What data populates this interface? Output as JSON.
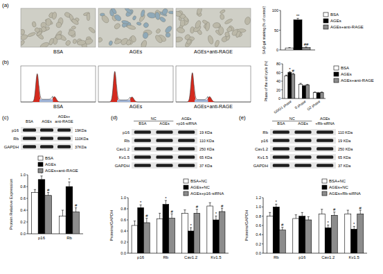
{
  "figure": {
    "panel_labels": [
      "(a)",
      "(b)",
      "(c)",
      "(d)",
      "(e)"
    ],
    "micrographs": {
      "labels": [
        "BSA",
        "AGEs",
        "AGEs+anti-RAGE"
      ]
    },
    "flow_histograms": {
      "labels": [
        "BSA",
        "AGEs",
        "AGEs+anti-RAGE"
      ]
    },
    "blots": [
      {
        "lanes": [
          [
            "BSA"
          ],
          [
            "AGEs"
          ],
          [
            "AGEs+",
            "anti-RAGE"
          ]
        ],
        "rows": [
          {
            "name": "p16",
            "size": "19KDa"
          },
          {
            "name": "Rb",
            "size": "110KDa"
          },
          {
            "name": "GAPDH",
            "size": "37KDa"
          }
        ]
      },
      {
        "group_label": "NC",
        "lanes": [
          [
            "BSA"
          ],
          [
            "AGEs"
          ],
          [
            "AGEs",
            "+p16-siRNA"
          ]
        ],
        "rows": [
          {
            "name": "p16",
            "size": "19 KDa"
          },
          {
            "name": "Rb",
            "size": "110 KDa"
          },
          {
            "name": "Cav1.2",
            "size": "250 KDa"
          },
          {
            "name": "Kv1.5",
            "size": "65 KDa"
          },
          {
            "name": "GAPDH",
            "size": "37 KDa"
          }
        ]
      },
      {
        "group_label": "NC",
        "lanes": [
          [
            "BSA"
          ],
          [
            "AGEs"
          ],
          [
            "AGEs",
            "+Rb-siRNA"
          ]
        ],
        "rows": [
          {
            "name": "Rb",
            "size": "110 KDa"
          },
          {
            "name": "p16",
            "size": "19 KDa"
          },
          {
            "name": "Cav1.2",
            "size": "250 KDa"
          },
          {
            "name": "Kv1.5",
            "size": "65 KDa"
          },
          {
            "name": "GAPDH",
            "size": "37 KDa"
          }
        ]
      }
    ]
  },
  "chart_data": [
    {
      "type": "bar",
      "y_label": "SA-β-gal staining (% of control)",
      "categories": [
        null
      ],
      "series": [
        {
          "name": "BSA",
          "color": "#ffffff",
          "values": [
            5
          ],
          "errors": [
            1
          ]
        },
        {
          "name": "AGEs",
          "color": "#000000",
          "values": [
            76
          ],
          "errors": [
            4
          ],
          "annotations": [
            "**"
          ]
        },
        {
          "name": "AGEs+anti-RAGE",
          "color": "#8c8c8c",
          "values": [
            6
          ],
          "errors": [
            1.5
          ],
          "annotations": [
            "##"
          ]
        }
      ],
      "ylim": [
        0,
        100
      ],
      "yticks": [
        0,
        50,
        100
      ],
      "legend": "right"
    },
    {
      "type": "bar",
      "y_label": "Phase of the cell cycle (%)",
      "categories": [
        "G0/G1 phase",
        "S phase",
        "G2 phase"
      ],
      "series": [
        {
          "name": "BSA",
          "color": "#ffffff",
          "values": [
            52,
            33,
            14
          ],
          "errors": [
            2,
            2,
            1
          ]
        },
        {
          "name": "AGEs",
          "color": "#000000",
          "values": [
            60,
            29,
            13
          ],
          "errors": [
            2,
            1.5,
            1
          ],
          "annotations": [
            "*",
            null,
            null
          ]
        },
        {
          "name": "AGEs+anti-RAGE",
          "color": "#8c8c8c",
          "values": [
            56,
            31,
            14
          ],
          "errors": [
            2,
            1.5,
            1
          ],
          "annotations": [
            "#",
            null,
            null
          ]
        }
      ],
      "ylim": [
        0,
        80
      ],
      "yticks": [
        0,
        20,
        40,
        60,
        80
      ],
      "legend": "right"
    },
    {
      "type": "bar",
      "y_label": "Protein Relative Expression",
      "categories": [
        "p16",
        "Rb"
      ],
      "series": [
        {
          "name": "BSA",
          "color": "#ffffff",
          "values": [
            0.7,
            0.3
          ],
          "errors": [
            0.05,
            0.1
          ]
        },
        {
          "name": "AGEs",
          "color": "#000000",
          "values": [
            0.92,
            0.8
          ],
          "errors": [
            0.06,
            0.08
          ],
          "annotations": [
            "*",
            "*"
          ]
        },
        {
          "name": "AGEs+anti-RAGE",
          "color": "#8c8c8c",
          "values": [
            0.65,
            0.37
          ],
          "errors": [
            0.05,
            0.07
          ],
          "annotations": [
            "#",
            "#"
          ]
        }
      ],
      "ylim": [
        0,
        1.0
      ],
      "yticks": [
        {
          "value": 0,
          "label": "0.0"
        },
        {
          "value": 0.2,
          "label": "0.2"
        },
        {
          "value": 0.4,
          "label": "0.4"
        },
        {
          "value": 0.6,
          "label": "0.6"
        },
        {
          "value": 0.8,
          "label": "0.8"
        },
        {
          "value": 1.0,
          "label": "1.0"
        }
      ],
      "legend": "top"
    },
    {
      "type": "bar",
      "y_label": "Proteins/GAPDH",
      "categories": [
        "p16",
        "Rb",
        "Cav1.2",
        "Kv1.5"
      ],
      "series": [
        {
          "name": "BSA+NC",
          "color": "#ffffff",
          "values": [
            0.5,
            0.62,
            0.72,
            0.85
          ],
          "errors": [
            0.08,
            0.1,
            0.06,
            0.06
          ]
        },
        {
          "name": "AGEs+NC",
          "color": "#000000",
          "values": [
            0.82,
            0.88,
            0.4,
            0.6
          ],
          "errors": [
            0.05,
            0.07,
            0.06,
            0.07
          ],
          "annotations": [
            "*",
            "*",
            "*",
            "*"
          ]
        },
        {
          "name": "AGEs+p16-siRNA",
          "color": "#8c8c8c",
          "values": [
            0.55,
            0.63,
            0.72,
            0.75
          ],
          "errors": [
            0.08,
            0.08,
            0.07,
            0.06
          ],
          "annotations": [
            "#",
            "#",
            "#",
            "#"
          ]
        }
      ],
      "ylim": [
        0,
        1.0
      ],
      "yticks": [
        {
          "value": 0,
          "label": "0.0"
        },
        {
          "value": 0.2,
          "label": "0.2"
        },
        {
          "value": 0.4,
          "label": "0.4"
        },
        {
          "value": 0.6,
          "label": "0.6"
        },
        {
          "value": 0.8,
          "label": "0.8"
        },
        {
          "value": 1.0,
          "label": "1.0"
        }
      ],
      "legend": "top"
    },
    {
      "type": "bar",
      "y_label": "Proteins/GAPDH",
      "categories": [
        "Rb",
        "p16",
        "Cav1.2",
        "Kv1.5"
      ],
      "series": [
        {
          "name": "BSA+NC",
          "color": "#ffffff",
          "values": [
            0.8,
            0.75,
            0.85,
            0.85
          ],
          "errors": [
            0.08,
            0.08,
            0.1,
            0.08
          ]
        },
        {
          "name": "AGEs+NC",
          "color": "#000000",
          "values": [
            1.0,
            0.8,
            0.55,
            0.52
          ],
          "errors": [
            0.06,
            0.08,
            0.06,
            0.06
          ],
          "annotations": [
            "*",
            null,
            "*",
            "*"
          ]
        },
        {
          "name": "AGEs+Rb-siRNA",
          "color": "#8c8c8c",
          "values": [
            0.5,
            0.72,
            0.82,
            0.85
          ],
          "errors": [
            0.06,
            0.07,
            0.07,
            0.08
          ],
          "annotations": [
            "#",
            null,
            "#",
            "#"
          ]
        }
      ],
      "ylim": [
        0,
        1.2
      ],
      "yticks": [
        {
          "value": 0,
          "label": "0.0"
        },
        {
          "value": 0.2,
          "label": "0.2"
        },
        {
          "value": 0.4,
          "label": "0.4"
        },
        {
          "value": 0.6,
          "label": "0.6"
        },
        {
          "value": 0.8,
          "label": "0.8"
        },
        {
          "value": 1.0,
          "label": "1.0"
        },
        {
          "value": 1.2,
          "label": "1.2"
        }
      ],
      "legend": "top"
    }
  ]
}
